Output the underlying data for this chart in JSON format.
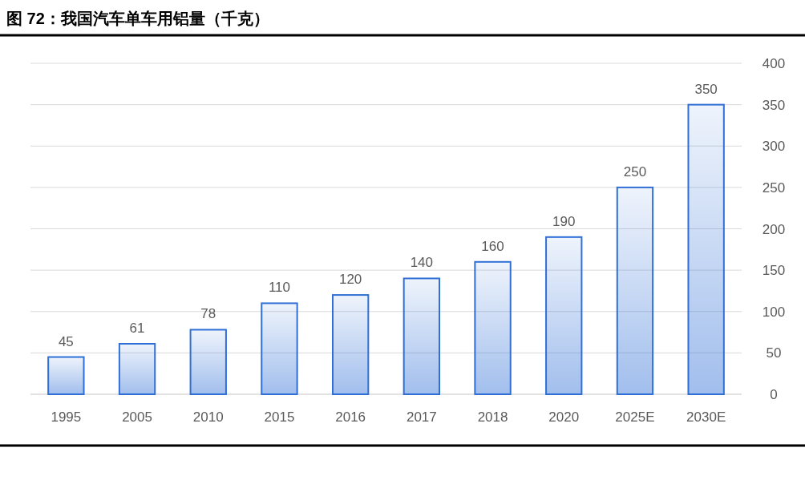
{
  "chart_data": {
    "type": "bar",
    "title": "图 72：我国汽车单车用铝量（千克）",
    "categories": [
      "1995",
      "2005",
      "2010",
      "2015",
      "2016",
      "2017",
      "2018",
      "2020",
      "2025E",
      "2030E"
    ],
    "values": [
      45,
      61,
      78,
      110,
      120,
      140,
      160,
      190,
      250,
      350
    ],
    "color": "#2f6fd6",
    "ylim": [
      0,
      400
    ],
    "yticks": [
      0,
      50,
      100,
      150,
      200,
      250,
      300,
      350,
      400
    ],
    "grid": "y",
    "data_labels": true
  }
}
